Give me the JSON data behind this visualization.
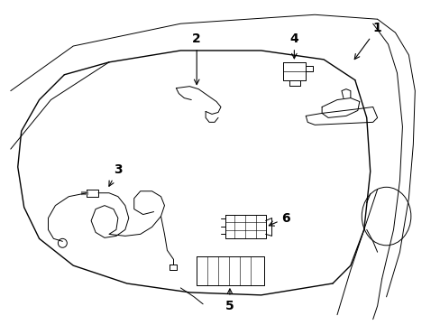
{
  "background_color": "#ffffff",
  "line_color": "#000000",
  "label_color": "#000000",
  "figsize": [
    4.89,
    3.6
  ],
  "dpi": 100,
  "label_fontsize": 10
}
